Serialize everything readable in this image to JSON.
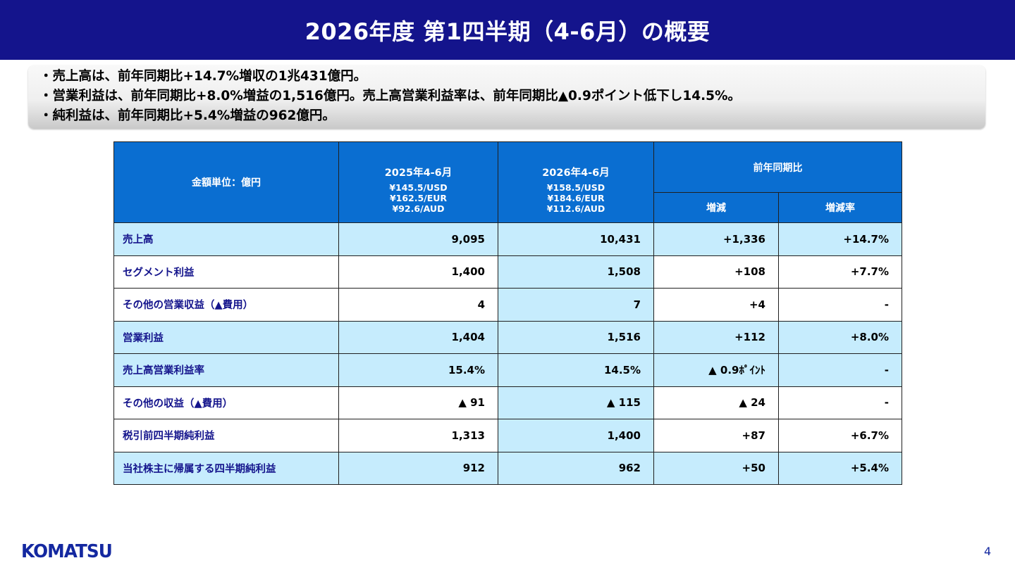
{
  "header": {
    "title": "2026年度 第1四半期（4-6月）の概要"
  },
  "summary": {
    "lines": [
      "・売上高は、前年同期比+14.7%増収の1兆431億円。",
      "・営業利益は、前年同期比+8.0%増益の1,516億円。売上高営業利益率は、前年同期比▲0.9ポイント低下し14.5%。",
      "・純利益は、前年同期比+5.4%増益の962億円。"
    ]
  },
  "table": {
    "unit_label": "金額単位：億円",
    "period_prev": {
      "label": "2025年4-6月",
      "rates": [
        "¥145.5/USD",
        "¥162.5/EUR",
        "¥92.6/AUD"
      ]
    },
    "period_curr": {
      "label": "2026年4-6月",
      "rates": [
        "¥158.5/USD",
        "¥184.6/EUR",
        "¥112.6/AUD"
      ]
    },
    "comparison_header": "前年同期比",
    "change_header": "増減",
    "change_rate_header": "増減率",
    "rows": [
      {
        "label": "売上高",
        "prev": "9,095",
        "curr": "10,431",
        "change": "+1,336",
        "rate": "+14.7%"
      },
      {
        "label": "セグメント利益",
        "prev": "1,400",
        "curr": "1,508",
        "change": "+108",
        "rate": "+7.7%"
      },
      {
        "label": "その他の営業収益（▲費用）",
        "prev": "4",
        "curr": "7",
        "change": "+4",
        "rate": "-"
      },
      {
        "label": "営業利益",
        "prev": "1,404",
        "curr": "1,516",
        "change": "+112",
        "rate": "+8.0%"
      },
      {
        "label": "売上高営業利益率",
        "prev": "15.4%",
        "curr": "14.5%",
        "change": "▲ 0.9ﾎﾟｲﾝﾄ",
        "rate": "-"
      },
      {
        "label": "その他の収益（▲費用）",
        "prev": "▲ 91",
        "curr": "▲ 115",
        "change": "▲ 24",
        "rate": "-"
      },
      {
        "label": "税引前四半期純利益",
        "prev": "1,313",
        "curr": "1,400",
        "change": "+87",
        "rate": "+6.7%"
      },
      {
        "label": "当社株主に帰属する四半期純利益",
        "prev": "912",
        "curr": "962",
        "change": "+50",
        "rate": "+5.4%"
      }
    ]
  },
  "footer": {
    "logo_text": "KOMATSU",
    "page_number": "4"
  }
}
